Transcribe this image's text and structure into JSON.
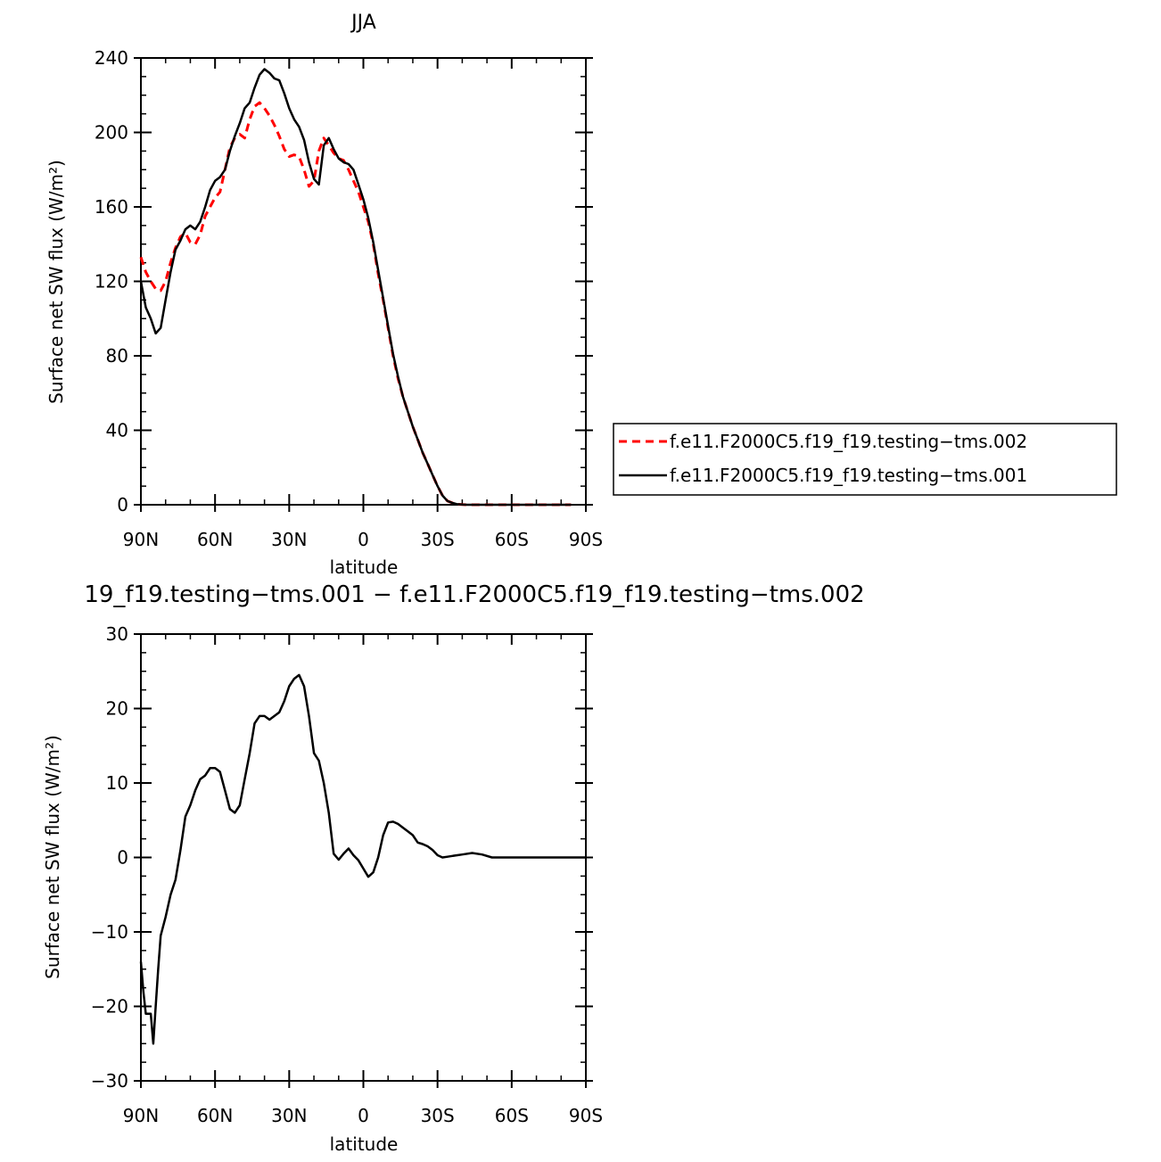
{
  "chart_data": [
    {
      "type": "line",
      "title": "JJA",
      "xlabel": "latitude",
      "ylabel": "Surface net SW flux (W/m²)",
      "xlim": [
        90,
        -90
      ],
      "ylim": [
        0,
        240
      ],
      "x_ticks": [
        90,
        60,
        30,
        0,
        -30,
        -60,
        -90
      ],
      "x_tick_labels": [
        "90N",
        "60N",
        "30N",
        "0",
        "30S",
        "60S",
        "90S"
      ],
      "y_ticks": [
        0,
        40,
        80,
        120,
        160,
        200,
        240
      ],
      "y_tick_labels": [
        "0",
        "40",
        "80",
        "120",
        "160",
        "200",
        "240"
      ],
      "legend_position": "right",
      "series": [
        {
          "name": "f.e11.F2000C5.f19_f19.testing−tms.002",
          "color": "#ff0000",
          "dash": "dashed",
          "x": [
            90,
            88,
            86,
            84,
            82,
            80,
            78,
            76,
            74,
            72,
            70,
            68,
            66,
            64,
            62,
            60,
            58,
            56,
            54,
            52,
            50,
            48,
            46,
            44,
            42,
            40,
            38,
            36,
            34,
            32,
            30,
            28,
            26,
            24,
            22,
            20,
            18,
            16,
            14,
            12,
            10,
            8,
            6,
            4,
            2,
            0,
            -2,
            -4,
            -6,
            -8,
            -10,
            -12,
            -14,
            -16,
            -18,
            -20,
            -22,
            -24,
            -26,
            -28,
            -30,
            -32,
            -34,
            -36,
            -38,
            -40,
            -42,
            -44,
            -46,
            -48,
            -50,
            -52,
            -54,
            -56,
            -58,
            -60,
            -62,
            -64,
            -66,
            -68,
            -70,
            -72,
            -74,
            -76,
            -78,
            -80,
            -82,
            -84
          ],
          "y": [
            133,
            125,
            120,
            116,
            115,
            120,
            130,
            138,
            144,
            146,
            141,
            140,
            145,
            155,
            160,
            165,
            168,
            180,
            192,
            197,
            199,
            197,
            207,
            214,
            216,
            213,
            209,
            204,
            198,
            191,
            187,
            188,
            187,
            180,
            171,
            174,
            190,
            197,
            193,
            189,
            186,
            185,
            180,
            174,
            168,
            160,
            152,
            140,
            124,
            110,
            95,
            80,
            68,
            58,
            50,
            42,
            35,
            28,
            22,
            16,
            10,
            5,
            2,
            1,
            0.3,
            0.1,
            0,
            0,
            0,
            0,
            0,
            0,
            0,
            0,
            0,
            0,
            0,
            0,
            0,
            0,
            0,
            0,
            0,
            0,
            0,
            0,
            0,
            0
          ]
        },
        {
          "name": "f.e11.F2000C5.f19_f19.testing−tms.001",
          "color": "#000000",
          "dash": "solid",
          "x": [
            90,
            88,
            86,
            84,
            82,
            80,
            78,
            76,
            74,
            72,
            70,
            68,
            66,
            64,
            62,
            60,
            58,
            56,
            54,
            52,
            50,
            48,
            46,
            44,
            42,
            40,
            38,
            36,
            34,
            32,
            30,
            28,
            26,
            24,
            22,
            20,
            18,
            16,
            14,
            12,
            10,
            8,
            6,
            4,
            2,
            0,
            -2,
            -4,
            -6,
            -8,
            -10,
            -12,
            -14,
            -16,
            -18,
            -20,
            -22,
            -24,
            -26,
            -28,
            -30,
            -32,
            -34,
            -36,
            -38,
            -40,
            -42,
            -44,
            -46,
            -48,
            -50,
            -52,
            -54,
            -56,
            -58,
            -60,
            -62,
            -64,
            -66,
            -68,
            -70,
            -72,
            -74,
            -76,
            -78,
            -80,
            -82,
            -84
          ],
          "y": [
            120,
            106,
            100,
            92,
            95,
            110,
            125,
            137,
            142,
            148,
            150,
            148,
            152,
            160,
            169,
            174,
            176,
            180,
            190,
            198,
            205,
            213,
            216,
            224,
            231,
            234,
            232,
            229,
            228,
            221,
            213,
            207,
            203,
            196,
            184,
            175,
            172,
            193,
            197,
            191,
            186,
            184,
            183,
            180,
            172,
            164,
            154,
            141,
            126,
            111,
            96,
            81,
            69,
            58,
            50,
            42,
            35,
            28,
            22,
            16,
            10,
            5,
            2,
            1,
            0.3,
            0.1,
            0,
            0,
            0,
            0,
            0,
            0,
            0,
            0,
            0,
            0,
            0,
            0,
            0,
            0,
            0,
            0,
            0,
            0,
            0,
            0,
            0,
            0
          ]
        }
      ]
    },
    {
      "type": "line",
      "title": "19_f19.testing−tms.001 − f.e11.F2000C5.f19_f19.testing−tms.002",
      "xlabel": "latitude",
      "ylabel": "Surface net SW flux (W/m²)",
      "xlim": [
        90,
        -90
      ],
      "ylim": [
        -30,
        30
      ],
      "x_ticks": [
        90,
        60,
        30,
        0,
        -30,
        -60,
        -90
      ],
      "x_tick_labels": [
        "90N",
        "60N",
        "30N",
        "0",
        "30S",
        "60S",
        "90S"
      ],
      "y_ticks": [
        -30,
        -20,
        -10,
        0,
        10,
        20,
        30
      ],
      "y_tick_labels": [
        "−30",
        "−20",
        "−10",
        "0",
        "10",
        "20",
        "30"
      ],
      "series": [
        {
          "color": "#000000",
          "dash": "solid",
          "x": [
            90,
            89,
            88,
            87,
            86,
            85,
            84,
            83,
            82,
            80,
            78,
            76,
            74,
            72,
            70,
            68,
            66,
            64,
            62,
            60,
            58,
            56,
            54,
            52,
            50,
            48,
            46,
            44,
            42,
            40,
            38,
            36,
            34,
            32,
            30,
            28,
            26,
            24,
            22,
            20,
            18,
            16,
            14,
            12,
            10,
            8,
            6,
            4,
            2,
            0,
            -2,
            -4,
            -6,
            -8,
            -10,
            -12,
            -14,
            -16,
            -18,
            -20,
            -22,
            -24,
            -26,
            -28,
            -30,
            -32,
            -34,
            -36,
            -38,
            -40,
            -44,
            -48,
            -52,
            -56,
            -60,
            -64,
            -70,
            -80,
            -90
          ],
          "y": [
            -14,
            -18,
            -21,
            -21,
            -21,
            -25,
            -20,
            -15,
            -10.5,
            -8,
            -5,
            -3,
            1,
            5.5,
            7,
            9,
            10.5,
            11,
            12,
            12,
            11.5,
            9,
            6.5,
            6,
            7,
            10.5,
            14,
            18,
            19,
            19,
            18.5,
            19,
            19.5,
            21,
            23,
            24,
            24.5,
            23,
            19,
            14,
            13,
            10,
            6,
            0.5,
            -0.3,
            0.5,
            1.2,
            0.3,
            -0.4,
            -1.5,
            -2.6,
            -2,
            0,
            3,
            4.7,
            4.8,
            4.5,
            4,
            3.5,
            3,
            2,
            1.8,
            1.5,
            1,
            0.3,
            0,
            0.1,
            0.2,
            0.3,
            0.4,
            0.6,
            0.4,
            0,
            0,
            0,
            0,
            0,
            0,
            0
          ]
        }
      ]
    }
  ]
}
